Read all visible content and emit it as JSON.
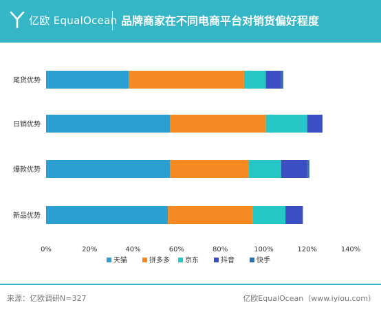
{
  "header": {
    "brand": "亿欧 EqualOcean",
    "title": "品牌商家在不同电商平台对销货偏好程度"
  },
  "footer": {
    "source": "来源：亿欧调研N=327",
    "credit": "亿欧EqualOcean（www.iyiou.com）"
  },
  "colors": {
    "header_bg": "#35b6c6",
    "series": [
      "#2b9fd1",
      "#f58a22",
      "#26c6c6",
      "#3b4fc2",
      "#2a73b8"
    ]
  },
  "chart_data": {
    "type": "bar",
    "orientation": "horizontal",
    "stacked": true,
    "categories": [
      "尾货优势",
      "日销优势",
      "爆款优势",
      "新品优势"
    ],
    "series": [
      {
        "name": "天猫",
        "values": [
          38,
          57,
          57,
          56
        ]
      },
      {
        "name": "拼多多",
        "values": [
          53,
          44,
          36,
          39
        ]
      },
      {
        "name": "京东",
        "values": [
          10,
          19,
          15,
          15
        ]
      },
      {
        "name": "抖音",
        "values": [
          7,
          7,
          12,
          8
        ]
      },
      {
        "name": "快手",
        "values": [
          1,
          0,
          1,
          0
        ]
      }
    ],
    "xlim": [
      0,
      140
    ],
    "xticks": [
      0,
      20,
      40,
      60,
      80,
      100,
      120,
      140
    ],
    "tick_suffix": "%",
    "legend_position": "bottom",
    "grid": false
  }
}
